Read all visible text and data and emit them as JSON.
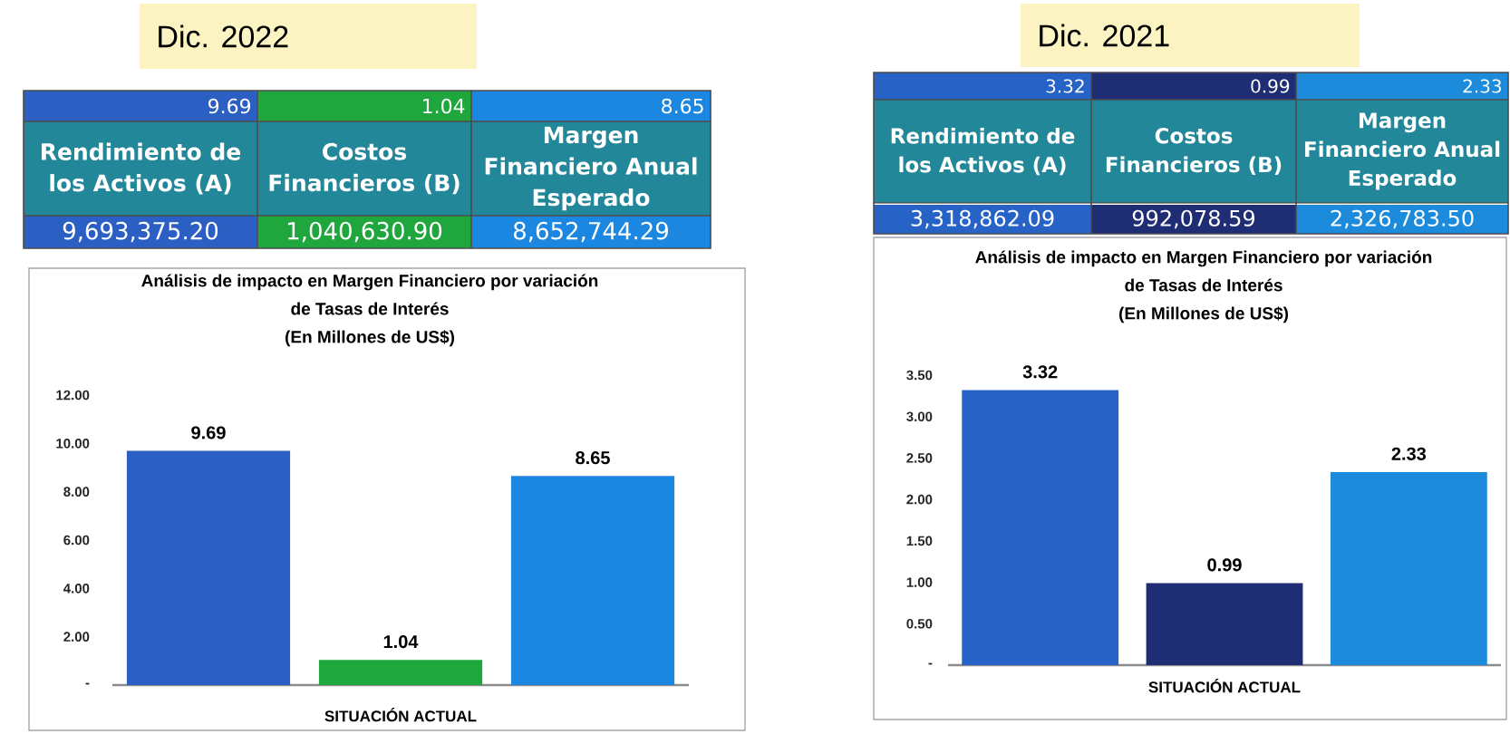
{
  "chart_data": [
    {
      "type": "bar",
      "title": "Análisis de impacto en Margen Financiero por variación de Tasas de Interés",
      "subtitle": "(En Millones de US$)",
      "xlabel": "SITUACIÓN ACTUAL",
      "categories": [
        "Rendimiento de los Activos (A)",
        "Costos Financieros (B)",
        "Margen Financiero Anual Esperado"
      ],
      "values": [
        9.69,
        1.04,
        8.65
      ],
      "colors": [
        "#2b5fc4",
        "#1fa63c",
        "#1c87e0"
      ],
      "ylim": [
        0,
        12
      ],
      "yticks": [
        {
          "value": 0,
          "label": "-"
        },
        {
          "value": 2,
          "label": "2.00"
        },
        {
          "value": 4,
          "label": "4.00"
        },
        {
          "value": 6,
          "label": "6.00"
        },
        {
          "value": 8,
          "label": "8.00"
        },
        {
          "value": 10,
          "label": "10.00"
        },
        {
          "value": 12,
          "label": "12.00"
        }
      ],
      "data_labels": true,
      "tick_labels": "y",
      "annotations": [
        "Dic. 2022",
        "9.69",
        "1.04",
        "8.65",
        "9,693,375.20",
        "1,040,630.90",
        "8,652,744.29"
      ]
    },
    {
      "type": "bar",
      "title": "Análisis de impacto en Margen Financiero por variación de Tasas de Interés",
      "subtitle": "(En Millones de US$)",
      "xlabel": "SITUACIÓN ACTUAL",
      "categories": [
        "Rendimiento de los Activos (A)",
        "Costos Financieros (B)",
        "Margen Financiero Anual Esperado"
      ],
      "values": [
        3.32,
        0.99,
        2.33
      ],
      "colors": [
        "#2763c6",
        "#1f2d74",
        "#1d8bdc"
      ],
      "ylim": [
        0,
        3.5
      ],
      "yticks": [
        {
          "value": 0,
          "label": "-"
        },
        {
          "value": 0.5,
          "label": "0.50"
        },
        {
          "value": 1,
          "label": "1.00"
        },
        {
          "value": 1.5,
          "label": "1.50"
        },
        {
          "value": 2,
          "label": "2.00"
        },
        {
          "value": 2.5,
          "label": "2.50"
        },
        {
          "value": 3,
          "label": "3.00"
        },
        {
          "value": 3.5,
          "label": "3.50"
        }
      ],
      "data_labels": true,
      "tick_labels": "y",
      "annotations": [
        "Dic. 2021",
        "3.32",
        "0.99",
        "2.33",
        "3,318,862.09",
        "992,078.59",
        "2,326,783.50"
      ]
    }
  ]
}
